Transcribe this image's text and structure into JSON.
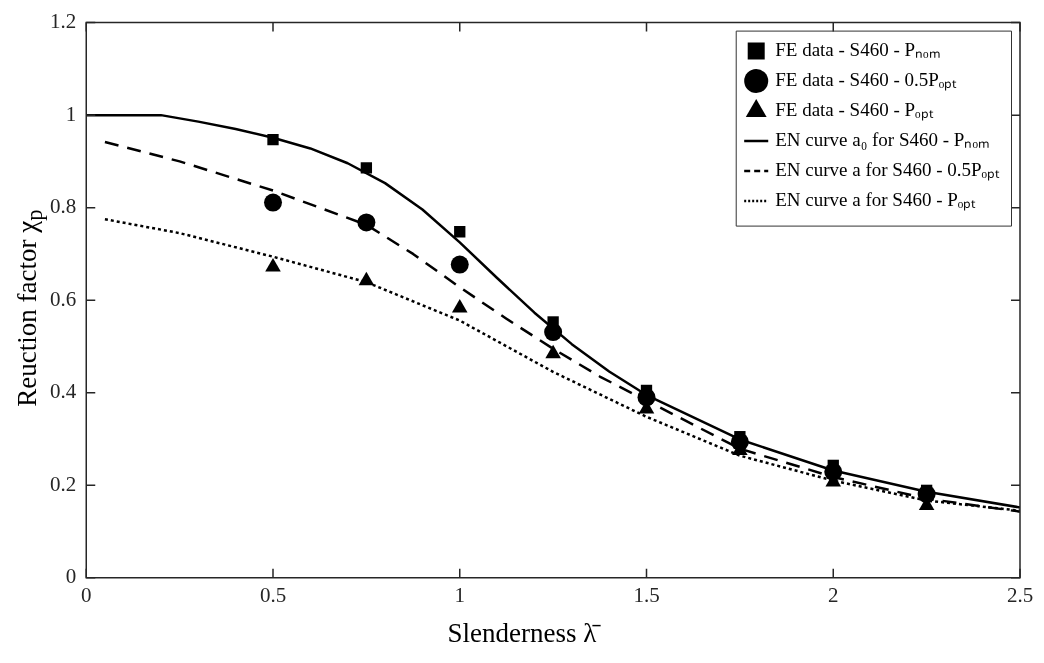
{
  "chart_data": {
    "type": "scatter",
    "xlabel": "Slenderness λ̄",
    "ylabel": "Reuction factor χ$_{p}$",
    "xlim": [
      0,
      2.5
    ],
    "xticks": [
      0,
      0.5,
      1,
      1.5,
      2,
      2.5
    ],
    "ylim": [
      0,
      1.2
    ],
    "yticks": [
      0,
      0.2,
      0.4,
      0.6,
      0.8,
      1,
      1.2
    ],
    "grid": false,
    "legend": "top right",
    "series": [
      {
        "name": "FE data - S460 - Pₙₒₘ",
        "type": "scatter",
        "marker": "square",
        "color": "#000000",
        "x": [
          0.5,
          0.75,
          1,
          1.25,
          1.5,
          1.75,
          2,
          2.25
        ],
        "values": [
          0.947,
          0.886,
          0.748,
          0.553,
          0.405,
          0.305,
          0.243,
          0.189
        ]
      },
      {
        "name": "FE data - S460 - 0.5Pₒₚₜ",
        "type": "scatter",
        "marker": "circle",
        "color": "#000000",
        "x": [
          0.5,
          0.75,
          1,
          1.25,
          1.5,
          1.75,
          2,
          2.25
        ],
        "values": [
          0.811,
          0.768,
          0.677,
          0.531,
          0.39,
          0.294,
          0.229,
          0.181
        ]
      },
      {
        "name": "FE data - S460 - Pₒₚₜ",
        "type": "scatter",
        "marker": "triangle",
        "color": "#000000",
        "x": [
          0.5,
          0.75,
          1,
          1.25,
          1.5,
          1.75,
          2,
          2.25
        ],
        "values": [
          0.672,
          0.642,
          0.583,
          0.484,
          0.365,
          0.275,
          0.207,
          0.156
        ]
      },
      {
        "name": "EN curve a₀ for S460 - Pₙₒₘ",
        "type": "line",
        "line_style": "solid",
        "color": "#000000",
        "x": [
          0,
          0.2,
          0.3,
          0.4,
          0.5,
          0.6,
          0.7,
          0.8,
          0.9,
          1,
          1.1,
          1.2,
          1.3,
          1.4,
          1.5,
          1.75,
          2,
          2.25,
          2.5
        ],
        "values": [
          1,
          1,
          0.986,
          0.97,
          0.951,
          0.928,
          0.896,
          0.853,
          0.796,
          0.725,
          0.648,
          0.573,
          0.505,
          0.446,
          0.395,
          0.299,
          0.232,
          0.186,
          0.152
        ]
      },
      {
        "name": "EN curve a for S460 - 0.5Pₒₚₜ",
        "type": "line",
        "line_style": "dashed",
        "color": "#000000",
        "x": [
          0.05,
          0.25,
          0.5,
          0.75,
          0.875,
          1,
          1.125,
          1.25,
          1.375,
          1.5,
          1.75,
          2,
          2.25,
          2.5
        ],
        "values": [
          0.942,
          0.9,
          0.837,
          0.763,
          0.7,
          0.628,
          0.56,
          0.495,
          0.435,
          0.383,
          0.279,
          0.218,
          0.171,
          0.143
        ]
      },
      {
        "name": "EN curve a for S460 - Pₒₚₜ",
        "type": "line",
        "line_style": "dotted",
        "color": "#000000",
        "x": [
          0.05,
          0.25,
          0.5,
          0.75,
          1,
          1.25,
          1.5,
          1.75,
          2,
          2.25,
          2.5
        ],
        "values": [
          0.775,
          0.745,
          0.694,
          0.639,
          0.556,
          0.445,
          0.348,
          0.264,
          0.21,
          0.167,
          0.145
        ]
      }
    ]
  }
}
